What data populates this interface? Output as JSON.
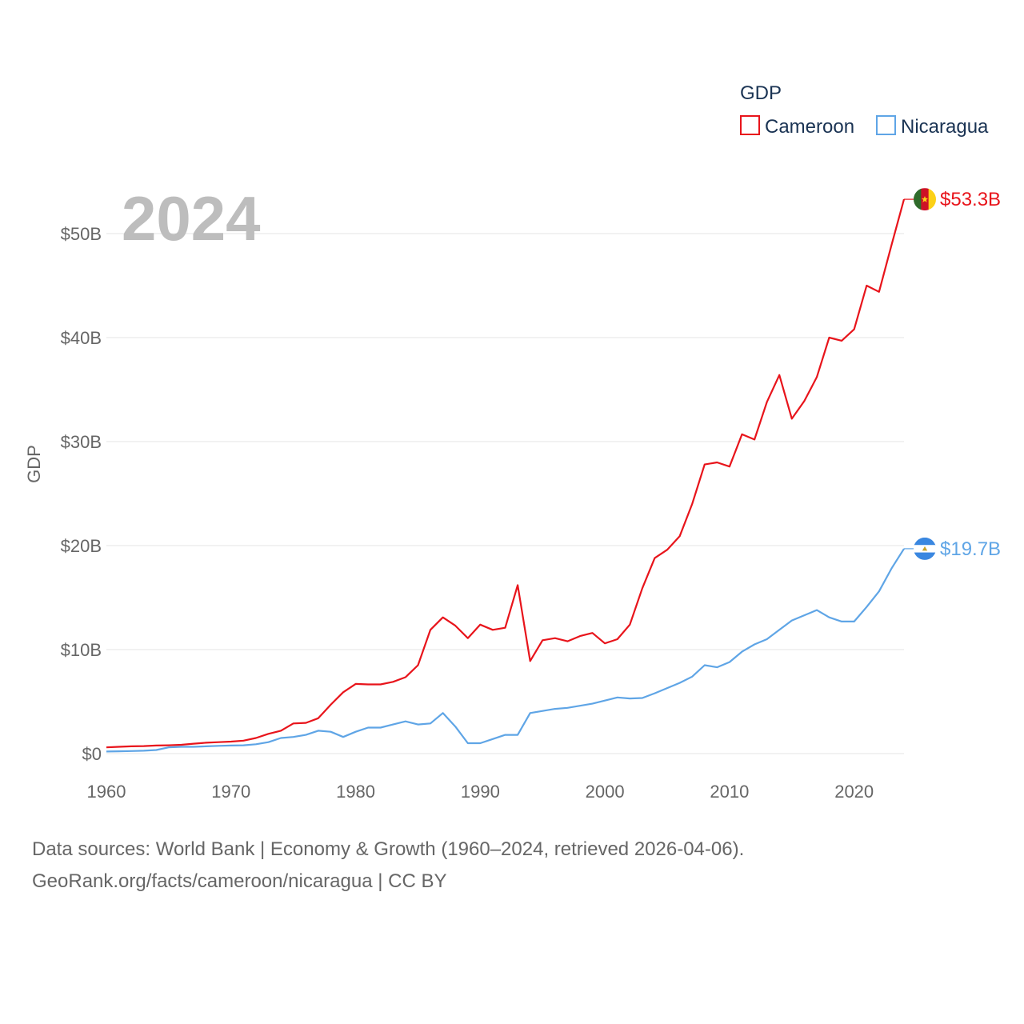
{
  "chart_data": {
    "type": "line",
    "title": "",
    "year_display": "2024",
    "ylabel": "GDP",
    "xlabel": "",
    "xlim": [
      1960,
      2024
    ],
    "ylim": [
      0,
      55
    ],
    "y_unit": "billion USD",
    "x_ticks": [
      "1960",
      "1970",
      "1980",
      "1990",
      "2000",
      "2010",
      "2020"
    ],
    "y_ticks": [
      "$0",
      "$10B",
      "$20B",
      "$30B",
      "$40B",
      "$50B"
    ],
    "y_tick_values": [
      0,
      10,
      20,
      30,
      40,
      50
    ],
    "legend": {
      "title": "GDP",
      "position": "top-right"
    },
    "x": [
      1960,
      1961,
      1962,
      1963,
      1964,
      1965,
      1966,
      1967,
      1968,
      1969,
      1970,
      1971,
      1972,
      1973,
      1974,
      1975,
      1976,
      1977,
      1978,
      1979,
      1980,
      1981,
      1982,
      1983,
      1984,
      1985,
      1986,
      1987,
      1988,
      1989,
      1990,
      1991,
      1992,
      1993,
      1994,
      1995,
      1996,
      1997,
      1998,
      1999,
      2000,
      2001,
      2002,
      2003,
      2004,
      2005,
      2006,
      2007,
      2008,
      2009,
      2010,
      2011,
      2012,
      2013,
      2014,
      2015,
      2016,
      2017,
      2018,
      2019,
      2020,
      2021,
      2022,
      2023,
      2024
    ],
    "series": [
      {
        "name": "Cameroon",
        "color": "#e8141b",
        "end_label": "$53.3B",
        "values": [
          0.6,
          0.65,
          0.7,
          0.72,
          0.78,
          0.8,
          0.85,
          0.95,
          1.05,
          1.1,
          1.15,
          1.25,
          1.5,
          1.9,
          2.2,
          2.9,
          2.95,
          3.4,
          4.7,
          5.9,
          6.7,
          6.65,
          6.65,
          6.9,
          7.35,
          8.5,
          11.9,
          13.1,
          12.3,
          11.1,
          12.4,
          11.9,
          12.1,
          16.2,
          8.9,
          10.9,
          11.1,
          10.8,
          11.3,
          11.6,
          10.6,
          11.0,
          12.4,
          15.9,
          18.8,
          19.6,
          20.9,
          24.0,
          27.8,
          28.0,
          27.6,
          30.7,
          30.2,
          33.8,
          36.4,
          32.2,
          33.9,
          36.2,
          40.0,
          39.7,
          40.8,
          45.0,
          44.4,
          48.9,
          53.3
        ]
      },
      {
        "name": "Nicaragua",
        "color": "#5fa5e6",
        "end_label": "$19.7B",
        "values": [
          0.2,
          0.22,
          0.25,
          0.28,
          0.35,
          0.6,
          0.65,
          0.65,
          0.7,
          0.75,
          0.78,
          0.8,
          0.9,
          1.1,
          1.5,
          1.6,
          1.8,
          2.2,
          2.1,
          1.6,
          2.1,
          2.5,
          2.5,
          2.8,
          3.1,
          2.8,
          2.9,
          3.9,
          2.6,
          1.0,
          1.0,
          1.4,
          1.8,
          1.8,
          3.9,
          4.1,
          4.3,
          4.4,
          4.6,
          4.8,
          5.1,
          5.4,
          5.3,
          5.35,
          5.8,
          6.3,
          6.8,
          7.4,
          8.5,
          8.3,
          8.8,
          9.8,
          10.5,
          11.0,
          11.9,
          12.8,
          13.3,
          13.8,
          13.1,
          12.7,
          12.7,
          14.1,
          15.6,
          17.8,
          19.7
        ]
      }
    ]
  },
  "source": {
    "line1": "Data sources: World Bank | Economy & Growth (1960–2024, retrieved 2026-04-06).",
    "line2": "GeoRank.org/facts/cameroon/nicaragua | CC BY"
  },
  "flags": [
    {
      "name": "cameroon-flag-icon",
      "colors": [
        "#2f6b2b",
        "#ce1126",
        "#fcd116"
      ]
    },
    {
      "name": "nicaragua-flag-icon",
      "colors": [
        "#3a87e0",
        "#ffffff",
        "#3a87e0"
      ]
    }
  ]
}
